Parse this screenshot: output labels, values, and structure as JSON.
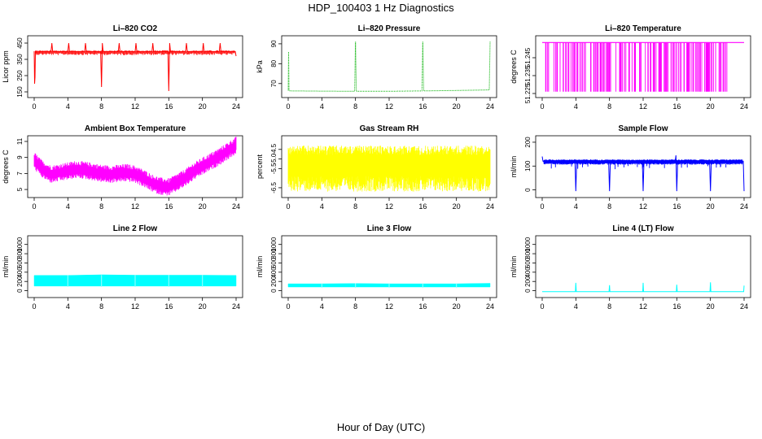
{
  "figure": {
    "title": "HDP_100403  1 Hz Diagnostics",
    "xlabel": "Hour of Day (UTC)"
  },
  "chart_data": [
    {
      "type": "line",
      "title": "Li–820 CO2",
      "ylabel": "Licor ppm",
      "color": "#ff0000",
      "xlim": [
        0,
        24
      ],
      "ylim": [
        140,
        470
      ],
      "x_ticks": [
        0,
        4,
        8,
        12,
        16,
        20,
        24
      ],
      "y_ticks": [
        150,
        250,
        350,
        450
      ],
      "series": [
        {
          "x": [
            0,
            0.05,
            0.1,
            0.15,
            0.3,
            1,
            2,
            2.1,
            2.2,
            3,
            4,
            4.1,
            4.2,
            5,
            6,
            6.1,
            6.2,
            7,
            7.9,
            8,
            8.1,
            8.2,
            9,
            10,
            10.1,
            10.2,
            11,
            12,
            12.1,
            12.2,
            13,
            14,
            14.1,
            14.2,
            15,
            15.9,
            16,
            16.1,
            16.2,
            17,
            18,
            18.1,
            18.2,
            19,
            20,
            20.1,
            20.2,
            21,
            22,
            22.1,
            22.2,
            23,
            23.9,
            24
          ],
          "y": [
            400,
            200,
            240,
            400,
            395,
            398,
            398,
            450,
            398,
            398,
            398,
            450,
            398,
            398,
            398,
            450,
            398,
            398,
            398,
            180,
            450,
            398,
            398,
            398,
            450,
            398,
            398,
            398,
            450,
            398,
            398,
            398,
            450,
            398,
            398,
            398,
            155,
            450,
            398,
            398,
            398,
            450,
            398,
            398,
            398,
            450,
            398,
            398,
            398,
            450,
            398,
            398,
            398,
            370
          ]
        }
      ]
    },
    {
      "type": "line",
      "title": "Li–820 Pressure",
      "ylabel": "kPa",
      "color": "#00b000",
      "xlim": [
        0,
        24
      ],
      "ylim": [
        65,
        92
      ],
      "x_ticks": [
        0,
        4,
        8,
        12,
        16,
        20,
        24
      ],
      "y_ticks": [
        70,
        80,
        90
      ],
      "series": [
        {
          "x": [
            0,
            0.05,
            0.1,
            0.2,
            4,
            7.9,
            8,
            8.1,
            12,
            15.9,
            16,
            16.1,
            20,
            23.9,
            24
          ],
          "y": [
            66.5,
            86,
            66.5,
            66.3,
            66.2,
            66.1,
            91,
            66.1,
            66.1,
            66.3,
            91,
            66.3,
            66.5,
            66.8,
            91
          ]
        }
      ]
    },
    {
      "type": "line",
      "title": "Li–820 Temperature",
      "ylabel": "degrees C",
      "color": "#ff00ff",
      "xlim": [
        0,
        24
      ],
      "ylim": [
        51.225,
        51.255
      ],
      "x_ticks": [
        0,
        4,
        8,
        12,
        16,
        20,
        24
      ],
      "y_ticks": [
        51.225,
        51.235,
        51.245
      ],
      "series": [
        {
          "x": [
            0,
            24
          ],
          "y": [
            51.2535,
            51.2535
          ]
        }
      ]
    },
    {
      "type": "line",
      "title": "Ambient Box Temperature",
      "ylabel": "degrees C",
      "color": "#ff00ff",
      "xlim": [
        0,
        24
      ],
      "ylim": [
        4.5,
        11.2
      ],
      "x_ticks": [
        0,
        4,
        8,
        12,
        16,
        20,
        24
      ],
      "y_ticks": [
        5,
        7,
        9,
        11
      ],
      "series": [
        {
          "x": [
            0,
            1,
            2,
            3,
            4,
            5,
            6,
            7,
            8,
            9,
            10,
            11,
            12,
            13,
            14,
            15,
            16,
            17,
            18,
            19,
            20,
            21,
            22,
            23,
            24
          ],
          "y": [
            8.6,
            7.5,
            6.9,
            7.1,
            7.3,
            7.5,
            7.4,
            7.2,
            7.0,
            6.9,
            7.0,
            7.1,
            6.9,
            6.4,
            5.8,
            5.4,
            5.3,
            5.9,
            6.5,
            7.3,
            7.9,
            8.5,
            9.1,
            9.8,
            10.5
          ]
        }
      ]
    },
    {
      "type": "line",
      "title": "Gas Stream RH",
      "ylabel": "percent",
      "color": "#ffff00",
      "xlim": [
        0,
        24
      ],
      "ylim": [
        -6.8,
        -4.0
      ],
      "x_ticks": [
        0,
        4,
        8,
        12,
        16,
        20,
        24
      ],
      "y_ticks": [
        -6.5,
        -5.5,
        -5.0,
        -4.5
      ],
      "series": [
        {
          "x": [
            0,
            24
          ],
          "y": [
            -5.3,
            -5.3
          ]
        }
      ]
    },
    {
      "type": "line",
      "title": "Sample Flow",
      "ylabel": "ml/min",
      "color": "#0000ff",
      "xlim": [
        0,
        24
      ],
      "ylim": [
        -15,
        210
      ],
      "x_ticks": [
        0,
        4,
        8,
        12,
        16,
        20,
        24
      ],
      "y_ticks": [
        0,
        100,
        200
      ],
      "series": [
        {
          "x": [
            0,
            0.1,
            0.2,
            3.9,
            4,
            4.1,
            7.9,
            8,
            8.1,
            11.9,
            12,
            12.1,
            15.8,
            15.9,
            16,
            16.1,
            19.9,
            20,
            20.1,
            23.8,
            23.9,
            24
          ],
          "y": [
            140,
            120,
            118,
            118,
            -5,
            118,
            118,
            -5,
            118,
            118,
            -5,
            118,
            118,
            145,
            -5,
            118,
            118,
            -5,
            118,
            118,
            120,
            -5
          ]
        }
      ]
    },
    {
      "type": "area",
      "title": "Line 2 Flow",
      "ylabel": "ml/min",
      "color": "#00ffff",
      "xlim": [
        0,
        24
      ],
      "ylim": [
        -60,
        1100
      ],
      "x_ticks": [
        0,
        4,
        8,
        12,
        16,
        20,
        24
      ],
      "y_ticks": [
        0,
        200,
        400,
        600,
        800,
        1000
      ],
      "series": [
        {
          "x": [
            0,
            4,
            8,
            12,
            16,
            20,
            24
          ],
          "y": [
            330,
            330,
            345,
            335,
            335,
            335,
            330
          ]
        }
      ]
    },
    {
      "type": "area",
      "title": "Line 3 Flow",
      "ylabel": "ml/min",
      "color": "#00ffff",
      "xlim": [
        0,
        24
      ],
      "ylim": [
        -60,
        1100
      ],
      "x_ticks": [
        0,
        4,
        8,
        12,
        16,
        20,
        24
      ],
      "y_ticks": [
        0,
        200,
        400,
        600,
        800,
        1000
      ],
      "series": [
        {
          "x": [
            0,
            4,
            8,
            12,
            16,
            20,
            24
          ],
          "y": [
            150,
            150,
            155,
            150,
            150,
            150,
            160
          ]
        }
      ]
    },
    {
      "type": "line",
      "title": "Line 4 (LT) Flow",
      "ylabel": "ml/min",
      "color": "#00ffff",
      "xlim": [
        0,
        24
      ],
      "ylim": [
        -60,
        1100
      ],
      "x_ticks": [
        0,
        4,
        8,
        12,
        16,
        20,
        24
      ],
      "y_ticks": [
        0,
        200,
        400,
        600,
        800,
        1000
      ],
      "series": [
        {
          "x": [
            0,
            3.95,
            4,
            4.05,
            7.95,
            8,
            8.05,
            11.95,
            12,
            12.05,
            15.95,
            16,
            16.05,
            19.95,
            20,
            20.05,
            23.95,
            24
          ],
          "y": [
            -20,
            -20,
            170,
            -20,
            -20,
            120,
            -20,
            -20,
            170,
            -20,
            -20,
            130,
            -20,
            -20,
            180,
            -20,
            -20,
            110
          ]
        }
      ]
    }
  ]
}
